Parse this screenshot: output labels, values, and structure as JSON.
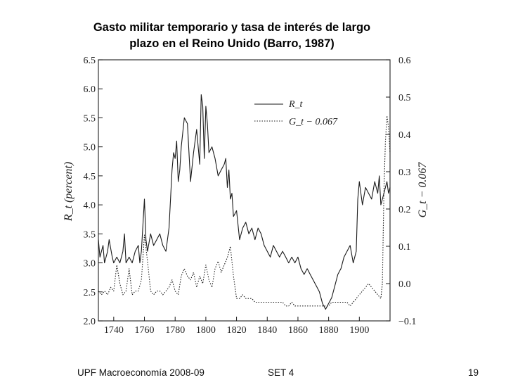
{
  "slide": {
    "title_line1": "Gasto militar temporario y tasa de interés de largo",
    "title_line2": "plazo en el Reino Unido (Barro, 1987)",
    "footer_left": "UPF Macroeconomía 2008-09",
    "footer_center": "SET 4",
    "page_number": "19"
  },
  "chart_data": {
    "type": "line",
    "x_ticks": [
      1740,
      1760,
      1780,
      1800,
      1820,
      1840,
      1860,
      1880,
      1900
    ],
    "xlim": [
      1730,
      1920
    ],
    "ylabel": "R_t (percent)",
    "ylim": [
      2.0,
      6.5
    ],
    "y_ticks": [
      "2.0",
      "2.5",
      "3.0",
      "3.5",
      "4.0",
      "4.5",
      "5.0",
      "5.5",
      "6.0",
      "6.5"
    ],
    "y2label": "G_t − 0.067",
    "y2lim": [
      -0.1,
      0.6
    ],
    "y2_ticks": [
      "−0.1",
      "0.0",
      "0.1",
      "0.2",
      "0.3",
      "0.4",
      "0.5",
      "0.6"
    ],
    "legend_position": "top-right",
    "series": [
      {
        "name": "R_t",
        "axis": "left",
        "style": "solid",
        "x": [
          1730,
          1731,
          1733,
          1734,
          1736,
          1737,
          1739,
          1740,
          1742,
          1744,
          1746,
          1747,
          1748,
          1750,
          1752,
          1754,
          1756,
          1757,
          1758,
          1760,
          1761,
          1762,
          1764,
          1766,
          1768,
          1770,
          1772,
          1774,
          1776,
          1778,
          1779,
          1780,
          1781,
          1782,
          1783,
          1784,
          1786,
          1788,
          1790,
          1792,
          1794,
          1796,
          1797,
          1798,
          1799,
          1800,
          1801,
          1802,
          1804,
          1806,
          1808,
          1810,
          1812,
          1813,
          1814,
          1815,
          1816,
          1817,
          1818,
          1820,
          1822,
          1824,
          1826,
          1828,
          1830,
          1832,
          1834,
          1836,
          1838,
          1840,
          1842,
          1844,
          1846,
          1848,
          1850,
          1852,
          1854,
          1856,
          1858,
          1860,
          1862,
          1864,
          1866,
          1868,
          1870,
          1872,
          1874,
          1876,
          1878,
          1880,
          1882,
          1884,
          1886,
          1888,
          1890,
          1892,
          1894,
          1896,
          1898,
          1899,
          1900,
          1902,
          1904,
          1906,
          1908,
          1910,
          1912,
          1913,
          1914,
          1915,
          1916,
          1917,
          1918,
          1919,
          1920
        ],
        "y": [
          3.4,
          3.1,
          3.3,
          3.0,
          3.2,
          3.4,
          3.1,
          3.0,
          3.1,
          3.0,
          3.2,
          3.5,
          3.0,
          3.1,
          3.0,
          3.2,
          3.3,
          3.0,
          3.2,
          4.1,
          3.4,
          3.2,
          3.5,
          3.3,
          3.4,
          3.5,
          3.3,
          3.2,
          3.6,
          4.6,
          4.9,
          4.8,
          5.1,
          4.4,
          4.6,
          5.0,
          5.5,
          5.4,
          4.4,
          4.9,
          5.3,
          4.7,
          5.9,
          5.7,
          4.8,
          5.7,
          5.4,
          4.9,
          5.0,
          4.8,
          4.5,
          4.6,
          4.7,
          4.8,
          4.3,
          4.6,
          4.1,
          4.2,
          3.8,
          3.9,
          3.4,
          3.6,
          3.7,
          3.5,
          3.6,
          3.4,
          3.6,
          3.5,
          3.3,
          3.2,
          3.1,
          3.3,
          3.2,
          3.1,
          3.2,
          3.1,
          3.0,
          3.1,
          3.0,
          3.1,
          2.9,
          2.8,
          2.9,
          2.8,
          2.7,
          2.6,
          2.5,
          2.3,
          2.2,
          2.3,
          2.4,
          2.6,
          2.8,
          2.9,
          3.1,
          3.2,
          3.3,
          3.0,
          3.2,
          4.1,
          4.4,
          4.0,
          4.3,
          4.2,
          4.1,
          4.4,
          4.2,
          4.5,
          4.0,
          4.1,
          4.2,
          4.3,
          4.4,
          4.2,
          4.3
        ]
      },
      {
        "name": "G_t − 0.067",
        "axis": "right",
        "style": "dotted",
        "x": [
          1730,
          1732,
          1734,
          1736,
          1738,
          1740,
          1742,
          1744,
          1746,
          1748,
          1750,
          1752,
          1754,
          1756,
          1758,
          1760,
          1762,
          1764,
          1766,
          1768,
          1770,
          1772,
          1774,
          1776,
          1778,
          1780,
          1782,
          1784,
          1786,
          1788,
          1790,
          1792,
          1794,
          1796,
          1798,
          1800,
          1802,
          1804,
          1806,
          1808,
          1810,
          1812,
          1814,
          1816,
          1818,
          1820,
          1822,
          1824,
          1826,
          1828,
          1830,
          1832,
          1834,
          1836,
          1838,
          1840,
          1842,
          1844,
          1846,
          1848,
          1850,
          1852,
          1854,
          1856,
          1858,
          1860,
          1862,
          1864,
          1866,
          1868,
          1870,
          1872,
          1874,
          1876,
          1878,
          1880,
          1882,
          1884,
          1886,
          1888,
          1890,
          1892,
          1894,
          1896,
          1898,
          1900,
          1902,
          1904,
          1906,
          1908,
          1910,
          1912,
          1914,
          1915,
          1916,
          1917,
          1918,
          1919,
          1920
        ],
        "y": [
          -0.02,
          -0.03,
          -0.02,
          -0.03,
          -0.01,
          -0.02,
          0.05,
          0.0,
          -0.03,
          -0.02,
          0.04,
          -0.03,
          -0.02,
          -0.02,
          0.01,
          0.13,
          0.06,
          -0.02,
          -0.03,
          -0.02,
          -0.02,
          -0.03,
          -0.02,
          -0.01,
          0.01,
          -0.02,
          -0.03,
          0.02,
          0.04,
          0.02,
          0.01,
          0.03,
          -0.01,
          0.02,
          0.0,
          0.05,
          0.01,
          -0.01,
          0.04,
          0.06,
          0.03,
          0.05,
          0.07,
          0.1,
          0.02,
          -0.04,
          -0.04,
          -0.03,
          -0.04,
          -0.04,
          -0.04,
          -0.05,
          -0.05,
          -0.05,
          -0.05,
          -0.05,
          -0.05,
          -0.05,
          -0.05,
          -0.05,
          -0.05,
          -0.06,
          -0.06,
          -0.05,
          -0.06,
          -0.06,
          -0.06,
          -0.06,
          -0.06,
          -0.06,
          -0.06,
          -0.06,
          -0.06,
          -0.06,
          -0.06,
          -0.06,
          -0.05,
          -0.05,
          -0.05,
          -0.05,
          -0.05,
          -0.05,
          -0.06,
          -0.05,
          -0.04,
          -0.03,
          -0.02,
          -0.01,
          0.0,
          -0.01,
          -0.02,
          -0.03,
          -0.04,
          0.0,
          0.25,
          0.38,
          0.45,
          0.42,
          0.35
        ]
      }
    ],
    "colors": {
      "ink": "#1a1a1a",
      "frame": "#333333"
    }
  }
}
